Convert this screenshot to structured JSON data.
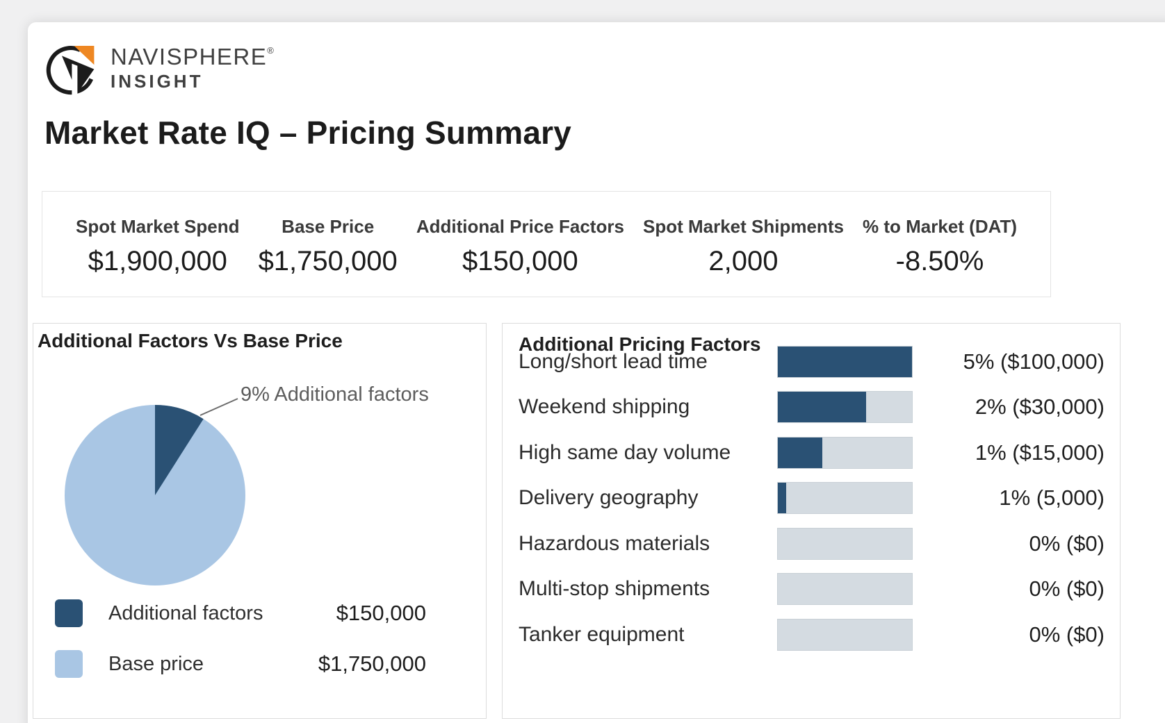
{
  "brand": {
    "name": "NAVISPHERE",
    "registered": "®",
    "product": "INSIGHT"
  },
  "page_title": "Market Rate IQ – Pricing Summary",
  "kpis": [
    {
      "label": "Spot Market Spend",
      "value": "$1,900,000"
    },
    {
      "label": "Base Price",
      "value": "$1,750,000"
    },
    {
      "label": "Additional Price Factors",
      "value": "$150,000"
    },
    {
      "label": "Spot Market Shipments",
      "value": "2,000"
    },
    {
      "label": "% to Market (DAT)",
      "value": "-8.50%"
    }
  ],
  "panels": {
    "pie": {
      "title": "Additional Factors Vs Base Price",
      "annotation": "9% Additional factors",
      "legend": [
        {
          "label": "Additional factors",
          "value": "$150,000"
        },
        {
          "label": "Base price",
          "value": "$1,750,000"
        }
      ]
    },
    "bars": {
      "title": "Additional Pricing Factors"
    }
  },
  "chart_data": [
    {
      "type": "pie",
      "title": "Additional Factors Vs Base Price",
      "slices": [
        {
          "label": "Additional factors",
          "value_usd": 150000,
          "pct": 9,
          "color": "#2a5174"
        },
        {
          "label": "Base price",
          "value_usd": 1750000,
          "pct": 91,
          "color": "#a9c6e4"
        }
      ],
      "annotation": "9% Additional factors",
      "legend_position": "bottom-left"
    },
    {
      "type": "bar",
      "title": "Additional Pricing Factors",
      "orientation": "horizontal",
      "categories": [
        "Long/short lead time",
        "Weekend shipping",
        "High same day volume",
        "Delivery geography",
        "Hazardous materials",
        "Multi-stop shipments",
        "Tanker equipment"
      ],
      "percents": [
        5,
        2,
        1,
        1,
        0,
        0,
        0
      ],
      "amounts_usd": [
        100000,
        30000,
        15000,
        5000,
        0,
        0,
        0
      ],
      "value_labels": [
        "5% ($100,000)",
        "2% ($30,000)",
        "1% ($15,000)",
        "1% (5,000)",
        "0% ($0)",
        "0% ($0)",
        "0% ($0)"
      ],
      "track_fill_pct": [
        100,
        66,
        33,
        6,
        0,
        0,
        0
      ],
      "bar_color": "#2a5174",
      "track_color": "#d4dbe1"
    }
  ],
  "colors": {
    "accent_dark": "#2a5174",
    "accent_light": "#a9c6e4",
    "brand_orange": "#ee8722",
    "ink": "#1f1f1f"
  }
}
